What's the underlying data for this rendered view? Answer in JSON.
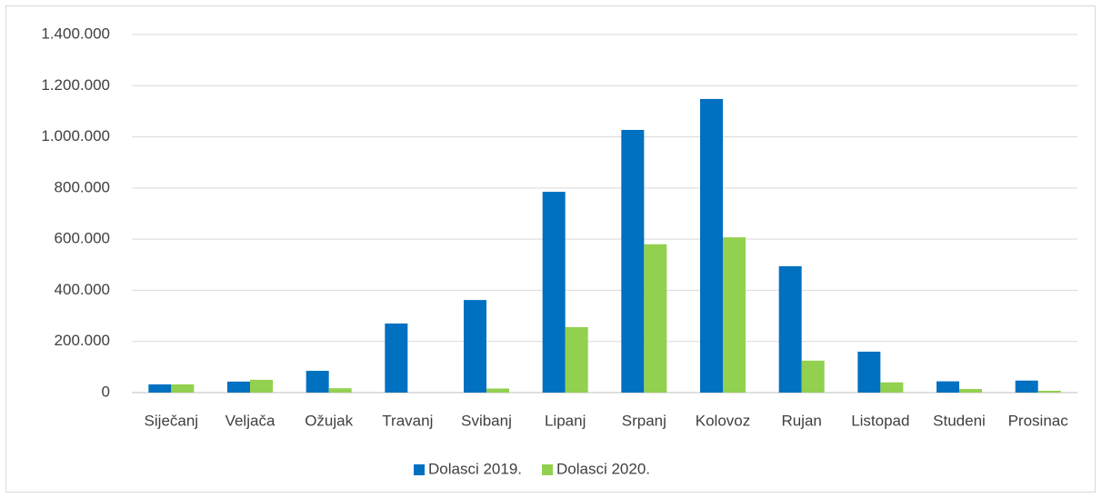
{
  "chart_data": {
    "type": "bar",
    "categories": [
      "Siječanj",
      "Veljača",
      "Ožujak",
      "Travanj",
      "Svibanj",
      "Lipanj",
      "Srpanj",
      "Kolovoz",
      "Rujan",
      "Listopad",
      "Studeni",
      "Prosinac"
    ],
    "series": [
      {
        "name": "Dolasci 2019.",
        "color": "#0070c0",
        "values": [
          32000,
          43000,
          85000,
          270000,
          362000,
          785000,
          1027000,
          1148000,
          494000,
          160000,
          44000,
          47000
        ]
      },
      {
        "name": "Dolasci 2020.",
        "color": "#92d050",
        "values": [
          32000,
          50000,
          17000,
          0,
          16000,
          256000,
          580000,
          607000,
          125000,
          40000,
          14000,
          7000
        ]
      }
    ],
    "ylim": [
      0,
      1400000
    ],
    "yticks": [
      0,
      {
        "value": 200000,
        "label": "200.000"
      },
      {
        "value": 400000,
        "label": "400.000"
      },
      {
        "value": 600000,
        "label": "600.000"
      },
      {
        "value": 800000,
        "label": "800.000"
      },
      {
        "value": 1000000,
        "label": "1.000.000"
      },
      {
        "value": 1200000,
        "label": "1.200.000"
      },
      {
        "value": 1400000,
        "label": "1.400.000"
      }
    ],
    "grid": true,
    "legend": "bottom"
  }
}
